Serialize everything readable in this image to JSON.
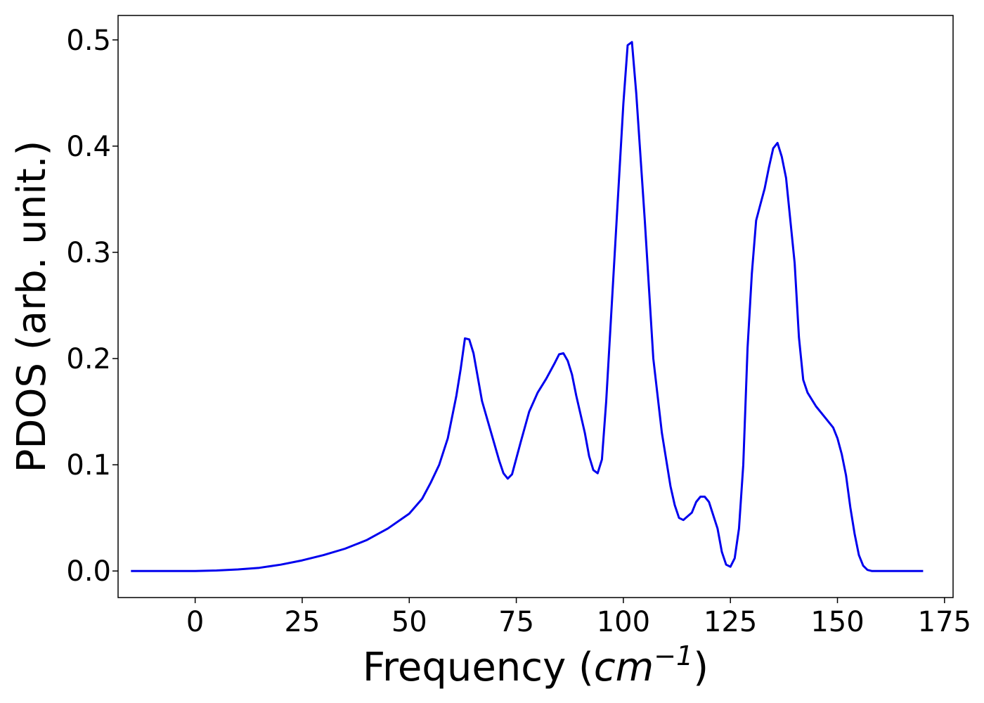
{
  "chart_data": {
    "type": "line",
    "title": "",
    "xlabel": "Frequency",
    "xlabel_unit_base": "cm",
    "xlabel_unit_exp": "−1",
    "ylabel": "PDOS (arb. unit.)",
    "xlim": [
      -18,
      177
    ],
    "ylim": [
      -0.025,
      0.523
    ],
    "xticks": [
      0,
      25,
      50,
      75,
      100,
      125,
      150,
      175
    ],
    "xtick_labels": [
      "0",
      "25",
      "50",
      "75",
      "100",
      "125",
      "150",
      "175"
    ],
    "yticks": [
      0.0,
      0.1,
      0.2,
      0.3,
      0.4,
      0.5
    ],
    "ytick_labels": [
      "0.0",
      "0.1",
      "0.2",
      "0.3",
      "0.4",
      "0.5"
    ],
    "grid": false,
    "series": [
      {
        "color": "#0000ee",
        "x": [
          -15,
          -10,
          -5,
          0,
          5,
          10,
          15,
          20,
          25,
          30,
          35,
          40,
          45,
          50,
          53,
          55,
          57,
          59,
          61,
          62,
          63,
          64,
          65,
          67,
          69,
          71,
          72,
          73,
          74,
          76,
          78,
          80,
          82,
          84,
          85,
          86,
          87,
          88,
          89,
          91,
          92,
          93,
          94,
          95,
          96,
          98,
          100,
          101,
          102,
          103,
          105,
          107,
          109,
          111,
          112,
          113,
          114,
          116,
          117,
          118,
          119,
          120,
          122,
          123,
          124,
          125,
          126,
          127,
          128,
          129,
          130,
          131,
          132,
          133,
          134,
          135,
          136,
          137,
          138,
          140,
          141,
          142,
          143,
          145,
          147,
          149,
          150,
          151,
          152,
          153,
          154,
          155,
          156,
          157,
          158,
          160,
          165,
          170
        ],
        "y": [
          0.0,
          0.0,
          0.0,
          0.0,
          0.0005,
          0.0015,
          0.003,
          0.006,
          0.01,
          0.015,
          0.021,
          0.029,
          0.04,
          0.054,
          0.068,
          0.083,
          0.1,
          0.125,
          0.165,
          0.19,
          0.219,
          0.218,
          0.205,
          0.16,
          0.132,
          0.104,
          0.092,
          0.087,
          0.091,
          0.121,
          0.15,
          0.168,
          0.181,
          0.196,
          0.204,
          0.205,
          0.198,
          0.185,
          0.165,
          0.13,
          0.108,
          0.095,
          0.092,
          0.105,
          0.16,
          0.3,
          0.44,
          0.495,
          0.498,
          0.45,
          0.33,
          0.2,
          0.13,
          0.08,
          0.062,
          0.05,
          0.048,
          0.055,
          0.065,
          0.07,
          0.07,
          0.065,
          0.04,
          0.018,
          0.006,
          0.004,
          0.012,
          0.04,
          0.1,
          0.21,
          0.28,
          0.33,
          0.345,
          0.36,
          0.38,
          0.398,
          0.403,
          0.39,
          0.37,
          0.29,
          0.22,
          0.18,
          0.168,
          0.155,
          0.145,
          0.135,
          0.125,
          0.11,
          0.09,
          0.06,
          0.035,
          0.015,
          0.005,
          0.001,
          0.0,
          0.0,
          0.0,
          0.0
        ]
      }
    ]
  }
}
